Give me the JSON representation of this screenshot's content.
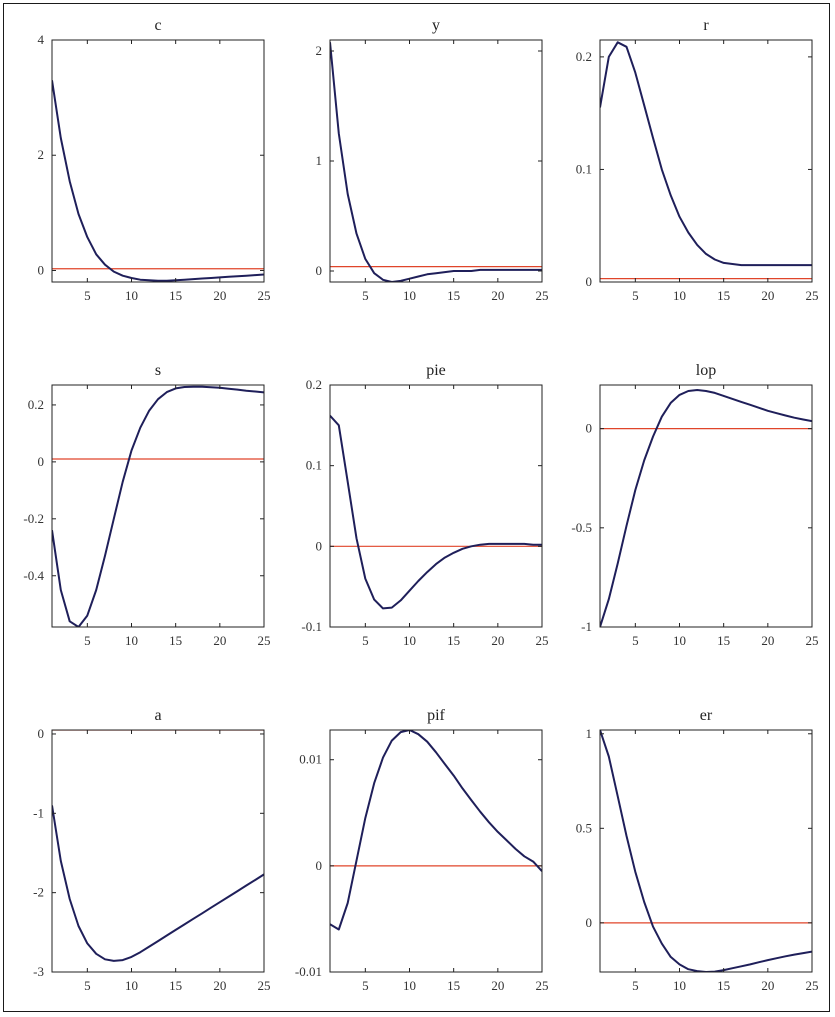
{
  "colors": {
    "response_line": "#1f1f5a",
    "zero_line": "#e0452a",
    "axes": "#222222"
  },
  "chart_data": [
    {
      "type": "line",
      "title": "c",
      "x": [
        1,
        2,
        3,
        4,
        5,
        6,
        7,
        8,
        9,
        10,
        11,
        12,
        13,
        14,
        15,
        16,
        17,
        18,
        19,
        20,
        21,
        22,
        23,
        24,
        25
      ],
      "values": [
        3.3,
        2.3,
        1.55,
        0.98,
        0.58,
        0.28,
        0.1,
        -0.02,
        -0.09,
        -0.13,
        -0.16,
        -0.17,
        -0.18,
        -0.18,
        -0.17,
        -0.16,
        -0.15,
        -0.14,
        -0.13,
        -0.12,
        -0.11,
        -0.1,
        -0.09,
        -0.08,
        -0.07
      ],
      "zero": 0.03,
      "xlim": [
        1,
        25
      ],
      "ylim": [
        -0.2,
        4
      ],
      "xticks": [
        5,
        10,
        15,
        20,
        25
      ],
      "xtick_labels": [
        "5",
        "10",
        "15",
        "20",
        "25"
      ],
      "yticks": [
        0,
        2,
        4
      ],
      "ytick_labels": [
        "0",
        "2",
        "4"
      ]
    },
    {
      "type": "line",
      "title": "y",
      "x": [
        1,
        2,
        3,
        4,
        5,
        6,
        7,
        8,
        9,
        10,
        11,
        12,
        13,
        14,
        15,
        16,
        17,
        18,
        19,
        20,
        21,
        22,
        23,
        24,
        25
      ],
      "values": [
        2.08,
        1.25,
        0.7,
        0.34,
        0.11,
        -0.02,
        -0.08,
        -0.1,
        -0.09,
        -0.07,
        -0.05,
        -0.03,
        -0.02,
        -0.01,
        0.0,
        0.0,
        0.0,
        0.01,
        0.01,
        0.01,
        0.01,
        0.01,
        0.01,
        0.01,
        0.01
      ],
      "zero": 0.04,
      "xlim": [
        1,
        25
      ],
      "ylim": [
        -0.1,
        2.1
      ],
      "xticks": [
        5,
        10,
        15,
        20,
        25
      ],
      "xtick_labels": [
        "5",
        "10",
        "15",
        "20",
        "25"
      ],
      "yticks": [
        0,
        1,
        2
      ],
      "ytick_labels": [
        "0",
        "1",
        "2"
      ]
    },
    {
      "type": "line",
      "title": "r",
      "x": [
        1,
        2,
        3,
        4,
        5,
        6,
        7,
        8,
        9,
        10,
        11,
        12,
        13,
        14,
        15,
        16,
        17,
        18,
        19,
        20,
        21,
        22,
        23,
        24,
        25
      ],
      "values": [
        0.155,
        0.2,
        0.213,
        0.209,
        0.186,
        0.157,
        0.128,
        0.1,
        0.077,
        0.058,
        0.044,
        0.033,
        0.025,
        0.02,
        0.017,
        0.016,
        0.015,
        0.015,
        0.015,
        0.015,
        0.015,
        0.015,
        0.015,
        0.015,
        0.015
      ],
      "zero": 0.003,
      "xlim": [
        1,
        25
      ],
      "ylim": [
        0,
        0.215
      ],
      "xticks": [
        5,
        10,
        15,
        20,
        25
      ],
      "xtick_labels": [
        "5",
        "10",
        "15",
        "20",
        "25"
      ],
      "yticks": [
        0,
        0.1,
        0.2
      ],
      "ytick_labels": [
        "0",
        "0.1",
        "0.2"
      ]
    },
    {
      "type": "line",
      "title": "s",
      "x": [
        1,
        2,
        3,
        4,
        5,
        6,
        7,
        8,
        9,
        10,
        11,
        12,
        13,
        14,
        15,
        16,
        17,
        18,
        19,
        20,
        21,
        22,
        23,
        24,
        25
      ],
      "values": [
        -0.24,
        -0.45,
        -0.56,
        -0.58,
        -0.54,
        -0.45,
        -0.33,
        -0.2,
        -0.07,
        0.04,
        0.12,
        0.18,
        0.22,
        0.245,
        0.258,
        0.263,
        0.264,
        0.264,
        0.262,
        0.26,
        0.257,
        0.254,
        0.25,
        0.247,
        0.244
      ],
      "zero": 0.01,
      "xlim": [
        1,
        25
      ],
      "ylim": [
        -0.58,
        0.27
      ],
      "xticks": [
        5,
        10,
        15,
        20,
        25
      ],
      "xtick_labels": [
        "5",
        "10",
        "15",
        "20",
        "25"
      ],
      "yticks": [
        -0.4,
        -0.2,
        0,
        0.2
      ],
      "ytick_labels": [
        "-0.4",
        "-0.2",
        "0",
        "0.2"
      ]
    },
    {
      "type": "line",
      "title": "pie",
      "x": [
        1,
        2,
        3,
        4,
        5,
        6,
        7,
        8,
        9,
        10,
        11,
        12,
        13,
        14,
        15,
        16,
        17,
        18,
        19,
        20,
        21,
        22,
        23,
        24,
        25
      ],
      "values": [
        0.162,
        0.15,
        0.08,
        0.01,
        -0.04,
        -0.066,
        -0.077,
        -0.076,
        -0.067,
        -0.055,
        -0.043,
        -0.032,
        -0.022,
        -0.014,
        -0.008,
        -0.003,
        0.0,
        0.002,
        0.003,
        0.003,
        0.003,
        0.003,
        0.003,
        0.002,
        0.002
      ],
      "zero": 0.0,
      "xlim": [
        1,
        25
      ],
      "ylim": [
        -0.1,
        0.2
      ],
      "xticks": [
        5,
        10,
        15,
        20,
        25
      ],
      "xtick_labels": [
        "5",
        "10",
        "15",
        "20",
        "25"
      ],
      "yticks": [
        -0.1,
        0,
        0.1,
        0.2
      ],
      "ytick_labels": [
        "-0.1",
        "0",
        "0.1",
        "0.2"
      ]
    },
    {
      "type": "line",
      "title": "lop",
      "x": [
        1,
        2,
        3,
        4,
        5,
        6,
        7,
        8,
        9,
        10,
        11,
        12,
        13,
        14,
        15,
        16,
        17,
        18,
        19,
        20,
        21,
        22,
        23,
        24,
        25
      ],
      "values": [
        -1.0,
        -0.86,
        -0.68,
        -0.49,
        -0.31,
        -0.16,
        -0.04,
        0.06,
        0.13,
        0.17,
        0.19,
        0.195,
        0.19,
        0.18,
        0.165,
        0.15,
        0.135,
        0.12,
        0.105,
        0.09,
        0.078,
        0.066,
        0.055,
        0.046,
        0.038
      ],
      "zero": 0.0,
      "xlim": [
        1,
        25
      ],
      "ylim": [
        -1.0,
        0.22
      ],
      "xticks": [
        5,
        10,
        15,
        20,
        25
      ],
      "xtick_labels": [
        "5",
        "10",
        "15",
        "20",
        "25"
      ],
      "yticks": [
        -1,
        -0.5,
        0
      ],
      "ytick_labels": [
        "-1",
        "-0.5",
        "0"
      ]
    },
    {
      "type": "line",
      "title": "a",
      "x": [
        1,
        2,
        3,
        4,
        5,
        6,
        7,
        8,
        9,
        10,
        11,
        12,
        13,
        14,
        15,
        16,
        17,
        18,
        19,
        20,
        21,
        22,
        23,
        24,
        25
      ],
      "values": [
        -0.9,
        -1.6,
        -2.08,
        -2.42,
        -2.64,
        -2.77,
        -2.84,
        -2.86,
        -2.85,
        -2.81,
        -2.75,
        -2.68,
        -2.61,
        -2.54,
        -2.47,
        -2.4,
        -2.33,
        -2.26,
        -2.19,
        -2.12,
        -2.05,
        -1.98,
        -1.91,
        -1.84,
        -1.77
      ],
      "zero": 0.05,
      "xlim": [
        1,
        25
      ],
      "ylim": [
        -3.0,
        0.05
      ],
      "xticks": [
        5,
        10,
        15,
        20,
        25
      ],
      "xtick_labels": [
        "5",
        "10",
        "15",
        "20",
        "25"
      ],
      "yticks": [
        -3,
        -2,
        -1,
        0
      ],
      "ytick_labels": [
        "-3",
        "-2",
        "-1",
        "0"
      ]
    },
    {
      "type": "line",
      "title": "pif",
      "x": [
        1,
        2,
        3,
        4,
        5,
        6,
        7,
        8,
        9,
        10,
        11,
        12,
        13,
        14,
        15,
        16,
        17,
        18,
        19,
        20,
        21,
        22,
        23,
        24,
        25
      ],
      "values": [
        -0.0055,
        -0.006,
        -0.0035,
        0.0005,
        0.0045,
        0.0078,
        0.0102,
        0.0118,
        0.0126,
        0.0128,
        0.0124,
        0.0117,
        0.0107,
        0.0096,
        0.0085,
        0.0073,
        0.0062,
        0.0051,
        0.0041,
        0.0032,
        0.0024,
        0.0016,
        0.0009,
        0.0004,
        -0.0005
      ],
      "zero": 0.0,
      "xlim": [
        1,
        25
      ],
      "ylim": [
        -0.01,
        0.0128
      ],
      "xticks": [
        5,
        10,
        15,
        20,
        25
      ],
      "xtick_labels": [
        "5",
        "10",
        "15",
        "20",
        "25"
      ],
      "yticks": [
        -0.01,
        0,
        0.01
      ],
      "ytick_labels": [
        "-0.01",
        "0",
        "0.01"
      ]
    },
    {
      "type": "line",
      "title": "er",
      "x": [
        1,
        2,
        3,
        4,
        5,
        6,
        7,
        8,
        9,
        10,
        11,
        12,
        13,
        14,
        15,
        16,
        17,
        18,
        19,
        20,
        21,
        22,
        23,
        24,
        25
      ],
      "values": [
        1.02,
        0.88,
        0.67,
        0.46,
        0.27,
        0.11,
        -0.02,
        -0.11,
        -0.18,
        -0.22,
        -0.245,
        -0.255,
        -0.26,
        -0.258,
        -0.25,
        -0.24,
        -0.23,
        -0.22,
        -0.208,
        -0.197,
        -0.187,
        -0.177,
        -0.168,
        -0.16,
        -0.152
      ],
      "zero": 0.0,
      "xlim": [
        1,
        25
      ],
      "ylim": [
        -0.26,
        1.02
      ],
      "xticks": [
        5,
        10,
        15,
        20,
        25
      ],
      "xtick_labels": [
        "5",
        "10",
        "15",
        "20",
        "25"
      ],
      "yticks": [
        0,
        0.5,
        1
      ],
      "ytick_labels": [
        "0",
        "0.5",
        "1"
      ]
    }
  ]
}
